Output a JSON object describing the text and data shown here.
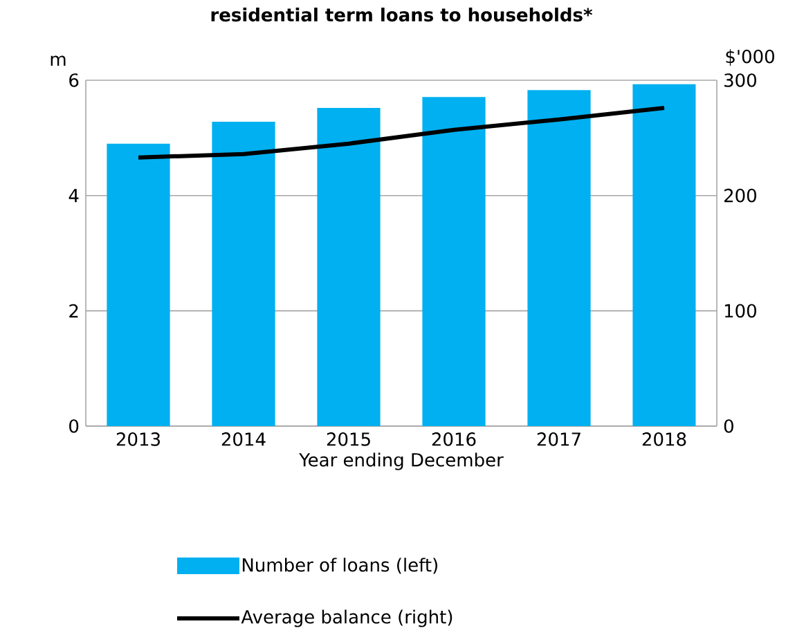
{
  "chart_data": {
    "type": "bar",
    "title": "residential term loans to households*",
    "xlabel": "Year ending December",
    "ylabel": "m",
    "y2label": "$'000",
    "categories": [
      "2013",
      "2014",
      "2015",
      "2016",
      "2017",
      "2018"
    ],
    "series": [
      {
        "name": "Number of loans (left)",
        "color": "#00b0f0",
        "values": [
          4.9,
          5.28,
          5.52,
          5.71,
          5.83,
          5.93
        ]
      },
      {
        "name": "Average balance (right)",
        "type": "line",
        "axis": "y2",
        "color": "#000000",
        "values": [
          233,
          236,
          245,
          257,
          266,
          276
        ]
      }
    ],
    "ylim": [
      0,
      6
    ],
    "yticks": [
      0,
      2,
      4,
      6
    ],
    "y2lim": [
      0,
      300
    ],
    "y2ticks": [
      0,
      100,
      200,
      300
    ],
    "grid": "y",
    "legend": "bottom"
  }
}
